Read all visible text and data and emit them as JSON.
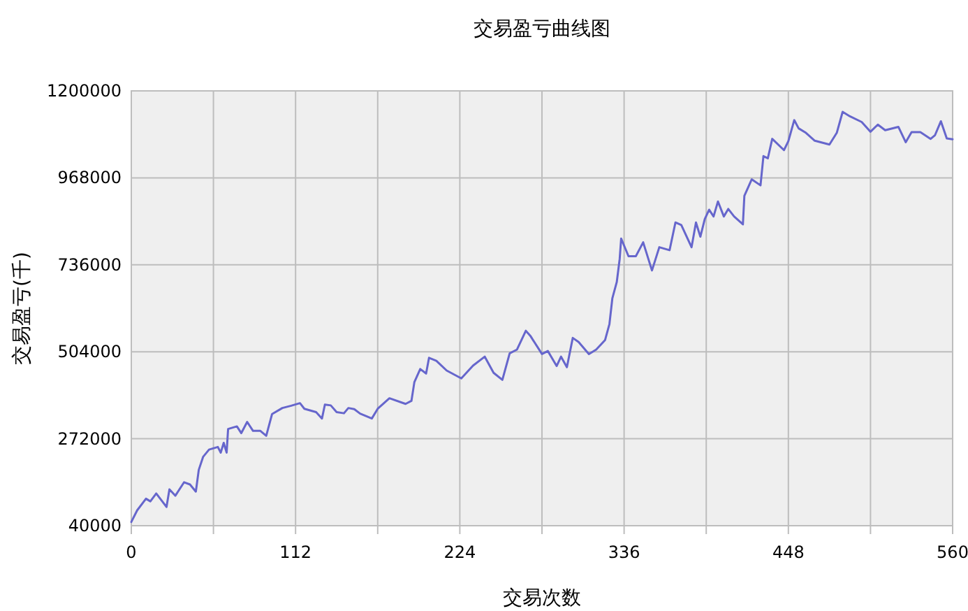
{
  "chart_data": {
    "type": "line",
    "title": "交易盈亏曲线图",
    "xlabel": "交易次数",
    "ylabel": "交易盈亏(千)",
    "xlim": [
      0,
      560
    ],
    "ylim": [
      40000,
      1200000
    ],
    "xticks": [
      0,
      {
        "value": 56,
        "label": null
      },
      112,
      {
        "value": 168,
        "label": null
      },
      224,
      {
        "value": 280,
        "label": null
      },
      336,
      {
        "value": 392,
        "label": null
      },
      448,
      {
        "value": 504,
        "label": null
      },
      560
    ],
    "yticks": [
      40000,
      272000,
      504000,
      736000,
      968000,
      1200000
    ],
    "grid": true,
    "series": [
      {
        "color": "#6666cc",
        "x": [
          0,
          4,
          10,
          13,
          17,
          24,
          26,
          30,
          36,
          40,
          44,
          46,
          49,
          53,
          59,
          61,
          63,
          65,
          66,
          72,
          75,
          79,
          83,
          88,
          92,
          96,
          103,
          109,
          115,
          118,
          126,
          130,
          132,
          136,
          140,
          145,
          148,
          152,
          156,
          164,
          168,
          176,
          187,
          191,
          193,
          197,
          201,
          203,
          208,
          215,
          225,
          233,
          241,
          247,
          253,
          258,
          263,
          269,
          272,
          280,
          284,
          290,
          293,
          297,
          301,
          305,
          312,
          317,
          323,
          326,
          328,
          331,
          333,
          334,
          339,
          344,
          349,
          355,
          360,
          367,
          371,
          375,
          382,
          385,
          388,
          391,
          394,
          397,
          400,
          404,
          407,
          411,
          417,
          418,
          423,
          429,
          431,
          434,
          437,
          445,
          448,
          452,
          455,
          460,
          466,
          476,
          481,
          485,
          490,
          498,
          504,
          509,
          514,
          523,
          528,
          532,
          538,
          545,
          548,
          552,
          556,
          560
        ],
        "values": [
          50000,
          81000,
          112000,
          105000,
          126000,
          90000,
          137000,
          120000,
          156000,
          150000,
          131000,
          189000,
          224000,
          243000,
          250000,
          235000,
          261000,
          235000,
          298000,
          305000,
          287000,
          317000,
          293000,
          293000,
          280000,
          338000,
          354000,
          360000,
          367000,
          352000,
          343000,
          326000,
          363000,
          361000,
          343000,
          340000,
          354000,
          351000,
          339000,
          326000,
          352000,
          380000,
          365000,
          373000,
          423000,
          458000,
          446000,
          488000,
          480000,
          454000,
          433000,
          467000,
          491000,
          448000,
          429000,
          500000,
          510000,
          560000,
          547000,
          498000,
          506000,
          466000,
          491000,
          463000,
          541000,
          530000,
          498000,
          510000,
          535000,
          578000,
          647000,
          690000,
          752000,
          806000,
          759000,
          759000,
          796000,
          721000,
          783000,
          775000,
          849000,
          842000,
          783000,
          849000,
          811000,
          858000,
          883000,
          865000,
          905000,
          865000,
          885000,
          865000,
          844000,
          920000,
          964000,
          948000,
          1026000,
          1020000,
          1072000,
          1042000,
          1066000,
          1122000,
          1100000,
          1088000,
          1067000,
          1057000,
          1088000,
          1144000,
          1132000,
          1117000,
          1091000,
          1110000,
          1095000,
          1104000,
          1063000,
          1090000,
          1090000,
          1072000,
          1082000,
          1119000,
          1073000,
          1071000
        ]
      }
    ]
  }
}
